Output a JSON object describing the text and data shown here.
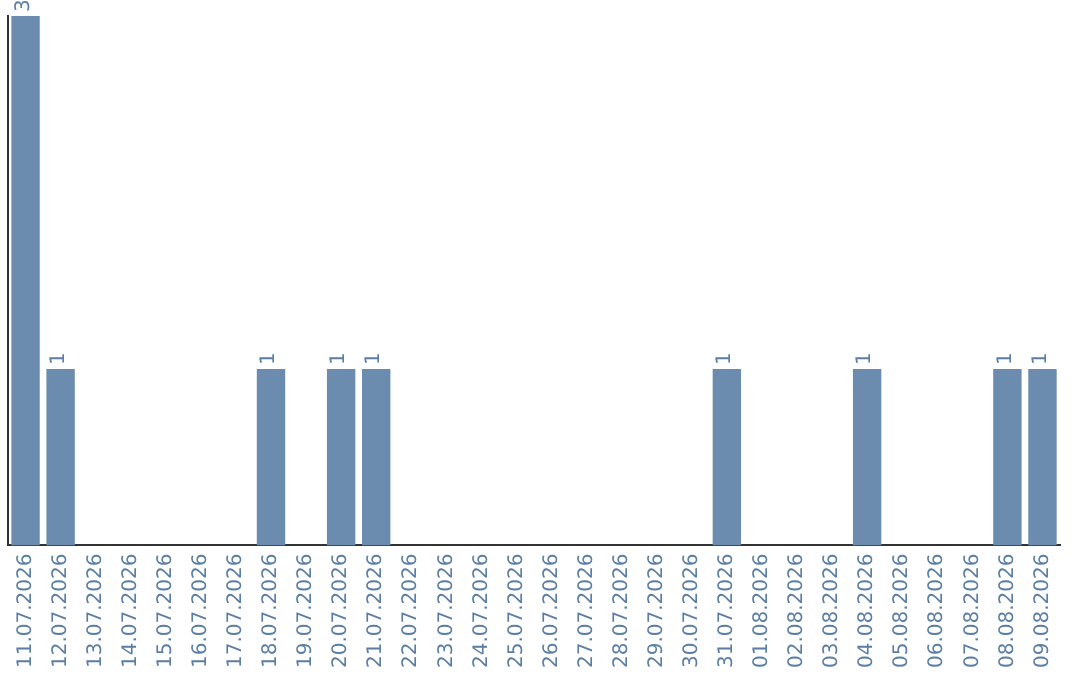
{
  "chart_data": {
    "type": "bar",
    "categories": [
      "11.07.2026",
      "12.07.2026",
      "13.07.2026",
      "14.07.2026",
      "15.07.2026",
      "16.07.2026",
      "17.07.2026",
      "18.07.2026",
      "19.07.2026",
      "20.07.2026",
      "21.07.2026",
      "22.07.2026",
      "23.07.2026",
      "24.07.2026",
      "25.07.2026",
      "26.07.2026",
      "27.07.2026",
      "28.07.2026",
      "29.07.2026",
      "30.07.2026",
      "31.07.2026",
      "01.08.2026",
      "02.08.2026",
      "03.08.2026",
      "04.08.2026",
      "05.08.2026",
      "06.08.2026",
      "07.08.2026",
      "08.08.2026",
      "09.08.2026"
    ],
    "values": [
      3,
      1,
      0,
      0,
      0,
      0,
      0,
      1,
      0,
      1,
      1,
      0,
      0,
      0,
      0,
      0,
      0,
      0,
      0,
      0,
      1,
      0,
      0,
      0,
      1,
      0,
      0,
      0,
      1,
      1
    ],
    "value_labels": [
      "3",
      "1",
      null,
      null,
      null,
      null,
      null,
      "1",
      null,
      "1",
      "1",
      null,
      null,
      null,
      null,
      null,
      null,
      null,
      null,
      null,
      "1",
      null,
      null,
      null,
      "1",
      null,
      null,
      null,
      "1",
      "1"
    ],
    "color": "#6b8cae",
    "grid": false,
    "legend": false,
    "tick_labels": "x"
  }
}
